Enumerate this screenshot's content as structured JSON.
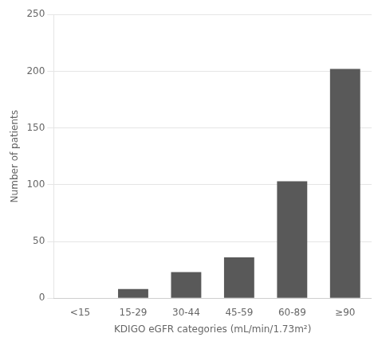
{
  "chart_data": {
    "type": "bar",
    "categories": [
      "<15",
      "15-29",
      "30-44",
      "45-59",
      "60-89",
      "≥90"
    ],
    "values": [
      0,
      8,
      23,
      36,
      103,
      202
    ],
    "color": "#595959",
    "xlabel": "KDIGO eGFR categories (mL/min/1.73m²)",
    "ylabel": "Number of patients",
    "ylim": [
      0,
      250
    ],
    "yticks": [
      0,
      50,
      100,
      150,
      200,
      250
    ],
    "grid": true
  }
}
